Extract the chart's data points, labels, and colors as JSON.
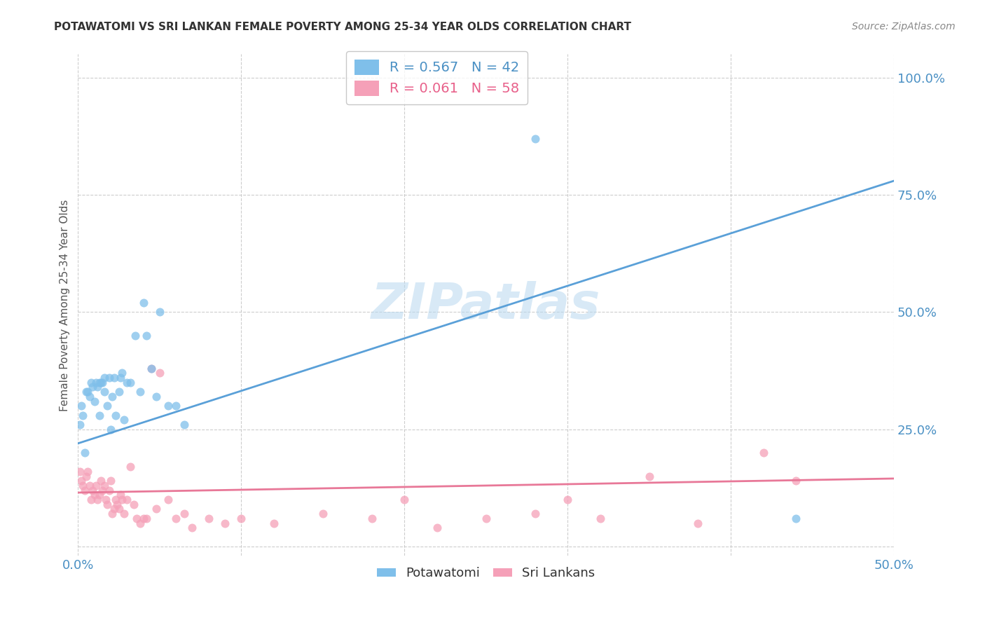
{
  "title": "POTAWATOMI VS SRI LANKAN FEMALE POVERTY AMONG 25-34 YEAR OLDS CORRELATION CHART",
  "source": "Source: ZipAtlas.com",
  "ylabel": "Female Poverty Among 25-34 Year Olds",
  "xlim": [
    0.0,
    0.5
  ],
  "ylim": [
    -0.02,
    1.05
  ],
  "xticks": [
    0.0,
    0.1,
    0.2,
    0.3,
    0.4,
    0.5
  ],
  "yticks": [
    0.0,
    0.25,
    0.5,
    0.75,
    1.0
  ],
  "background_color": "#ffffff",
  "grid_color": "#c8c8c8",
  "watermark": "ZIPatlas",
  "color_blue": "#7fbfea",
  "color_pink": "#f5a0b8",
  "color_blue_dark": "#4a90c4",
  "color_pink_dark": "#e8608a",
  "line_blue": "#5aa0d8",
  "line_pink": "#e87898",
  "pot_line_x0": 0.0,
  "pot_line_y0": 0.22,
  "pot_line_x1": 0.5,
  "pot_line_y1": 0.78,
  "sri_line_x0": 0.0,
  "sri_line_y0": 0.115,
  "sri_line_x1": 0.5,
  "sri_line_y1": 0.145,
  "potawatomi_x": [
    0.001,
    0.002,
    0.003,
    0.004,
    0.005,
    0.006,
    0.007,
    0.008,
    0.009,
    0.01,
    0.011,
    0.012,
    0.013,
    0.013,
    0.014,
    0.015,
    0.016,
    0.016,
    0.018,
    0.019,
    0.02,
    0.021,
    0.022,
    0.023,
    0.025,
    0.026,
    0.027,
    0.028,
    0.03,
    0.032,
    0.035,
    0.038,
    0.04,
    0.042,
    0.045,
    0.048,
    0.05,
    0.055,
    0.06,
    0.065,
    0.28,
    0.44
  ],
  "potawatomi_y": [
    0.26,
    0.3,
    0.28,
    0.2,
    0.33,
    0.33,
    0.32,
    0.35,
    0.34,
    0.31,
    0.35,
    0.34,
    0.35,
    0.28,
    0.35,
    0.35,
    0.33,
    0.36,
    0.3,
    0.36,
    0.25,
    0.32,
    0.36,
    0.28,
    0.33,
    0.36,
    0.37,
    0.27,
    0.35,
    0.35,
    0.45,
    0.33,
    0.52,
    0.45,
    0.38,
    0.32,
    0.5,
    0.3,
    0.3,
    0.26,
    0.87,
    0.06
  ],
  "srilankans_x": [
    0.001,
    0.002,
    0.003,
    0.004,
    0.005,
    0.006,
    0.007,
    0.008,
    0.009,
    0.01,
    0.011,
    0.012,
    0.013,
    0.014,
    0.015,
    0.016,
    0.017,
    0.018,
    0.019,
    0.02,
    0.021,
    0.022,
    0.023,
    0.024,
    0.025,
    0.026,
    0.027,
    0.028,
    0.03,
    0.032,
    0.034,
    0.036,
    0.038,
    0.04,
    0.042,
    0.045,
    0.048,
    0.05,
    0.055,
    0.06,
    0.065,
    0.07,
    0.08,
    0.09,
    0.1,
    0.12,
    0.15,
    0.18,
    0.2,
    0.22,
    0.25,
    0.28,
    0.3,
    0.32,
    0.35,
    0.38,
    0.42,
    0.44
  ],
  "srilankans_y": [
    0.16,
    0.14,
    0.13,
    0.12,
    0.15,
    0.16,
    0.13,
    0.1,
    0.12,
    0.11,
    0.13,
    0.1,
    0.11,
    0.14,
    0.12,
    0.13,
    0.1,
    0.09,
    0.12,
    0.14,
    0.07,
    0.08,
    0.1,
    0.09,
    0.08,
    0.11,
    0.1,
    0.07,
    0.1,
    0.17,
    0.09,
    0.06,
    0.05,
    0.06,
    0.06,
    0.38,
    0.08,
    0.37,
    0.1,
    0.06,
    0.07,
    0.04,
    0.06,
    0.05,
    0.06,
    0.05,
    0.07,
    0.06,
    0.1,
    0.04,
    0.06,
    0.07,
    0.1,
    0.06,
    0.15,
    0.05,
    0.2,
    0.14
  ]
}
